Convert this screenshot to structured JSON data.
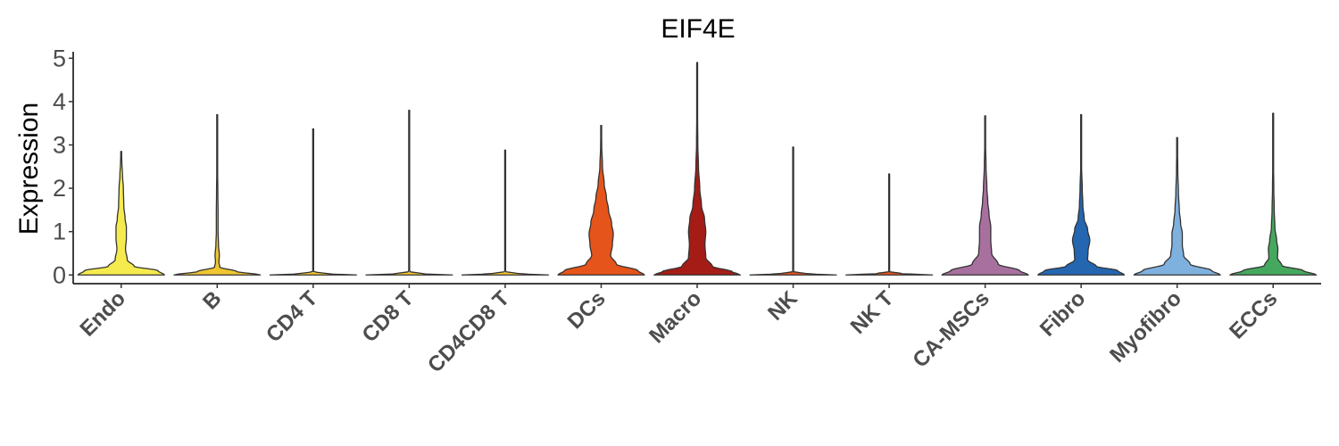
{
  "chart_data": {
    "type": "violin",
    "title": "EIF4E",
    "xlabel": "",
    "ylabel": "Expression",
    "ylim": [
      -0.2,
      5.15
    ],
    "yticks": [
      "0",
      "1",
      "2",
      "3",
      "4",
      "5"
    ],
    "grid": false,
    "legend": "none",
    "categories": [
      "Endo",
      "B",
      "CD4 T",
      "CD8 T",
      "CD4CD8 T",
      "DCs",
      "Macro",
      "NK",
      "NK T",
      "CA-MSCs",
      "Fibro",
      "Myofibro",
      "ECCs"
    ],
    "series": [
      {
        "category": "Endo",
        "color": "#F6EB4E",
        "max": 2.85,
        "profile": [
          [
            0,
            1
          ],
          [
            0.1,
            0.85
          ],
          [
            0.2,
            0.3
          ],
          [
            0.35,
            0.14
          ],
          [
            0.6,
            0.1
          ],
          [
            0.85,
            0.12
          ],
          [
            1.1,
            0.12
          ],
          [
            1.3,
            0.09
          ],
          [
            1.6,
            0.06
          ],
          [
            2.0,
            0.05
          ],
          [
            2.3,
            0.03
          ],
          [
            2.6,
            0.015
          ],
          [
            2.85,
            0.004
          ]
        ]
      },
      {
        "category": "B",
        "color": "#F0C631",
        "max": 3.7,
        "profile": [
          [
            0,
            1
          ],
          [
            0.08,
            0.45
          ],
          [
            0.18,
            0.06
          ],
          [
            0.3,
            0.04
          ],
          [
            0.45,
            0.05
          ],
          [
            0.7,
            0.03
          ],
          [
            1.0,
            0.02
          ],
          [
            1.4,
            0.02
          ],
          [
            1.9,
            0.015
          ],
          [
            2.5,
            0.008
          ],
          [
            3.2,
            0.004
          ],
          [
            3.7,
            0.003
          ]
        ]
      },
      {
        "category": "CD4 T",
        "color": "#F0C631",
        "max": 3.37,
        "profile": [
          [
            0,
            1
          ],
          [
            0.03,
            0.3
          ],
          [
            0.08,
            0.008
          ],
          [
            1.0,
            0.005
          ],
          [
            3.37,
            0.003
          ]
        ]
      },
      {
        "category": "CD8 T",
        "color": "#F0C631",
        "max": 3.8,
        "profile": [
          [
            0,
            1
          ],
          [
            0.03,
            0.3
          ],
          [
            0.08,
            0.008
          ],
          [
            1.0,
            0.005
          ],
          [
            3.8,
            0.003
          ]
        ]
      },
      {
        "category": "CD4CD8 T",
        "color": "#F0C631",
        "max": 2.88,
        "profile": [
          [
            0,
            1
          ],
          [
            0.03,
            0.3
          ],
          [
            0.08,
            0.008
          ],
          [
            1.0,
            0.005
          ],
          [
            2.88,
            0.003
          ]
        ]
      },
      {
        "category": "DCs",
        "color": "#E5541A",
        "max": 3.45,
        "profile": [
          [
            0,
            1
          ],
          [
            0.1,
            0.85
          ],
          [
            0.25,
            0.35
          ],
          [
            0.45,
            0.22
          ],
          [
            0.7,
            0.26
          ],
          [
            0.95,
            0.28
          ],
          [
            1.2,
            0.24
          ],
          [
            1.5,
            0.17
          ],
          [
            1.8,
            0.12
          ],
          [
            2.1,
            0.07
          ],
          [
            2.5,
            0.03
          ],
          [
            3.0,
            0.012
          ],
          [
            3.45,
            0.004
          ]
        ]
      },
      {
        "category": "Macro",
        "color": "#A51C16",
        "max": 4.9,
        "profile": [
          [
            0,
            1
          ],
          [
            0.08,
            0.8
          ],
          [
            0.2,
            0.35
          ],
          [
            0.4,
            0.2
          ],
          [
            0.7,
            0.18
          ],
          [
            1.0,
            0.2
          ],
          [
            1.3,
            0.17
          ],
          [
            1.6,
            0.1
          ],
          [
            2.0,
            0.06
          ],
          [
            2.5,
            0.03
          ],
          [
            3.0,
            0.015
          ],
          [
            4.0,
            0.006
          ],
          [
            4.9,
            0.003
          ]
        ]
      },
      {
        "category": "NK",
        "color": "#E5541A",
        "max": 2.95,
        "profile": [
          [
            0,
            1
          ],
          [
            0.03,
            0.3
          ],
          [
            0.08,
            0.008
          ],
          [
            1.0,
            0.005
          ],
          [
            2.95,
            0.003
          ]
        ]
      },
      {
        "category": "NK T",
        "color": "#E5541A",
        "max": 2.33,
        "profile": [
          [
            0,
            1
          ],
          [
            0.03,
            0.3
          ],
          [
            0.08,
            0.008
          ],
          [
            1.0,
            0.005
          ],
          [
            2.33,
            0.003
          ]
        ]
      },
      {
        "category": "CA-MSCs",
        "color": "#A8709F",
        "max": 3.67,
        "profile": [
          [
            0,
            1
          ],
          [
            0.1,
            0.8
          ],
          [
            0.25,
            0.3
          ],
          [
            0.5,
            0.15
          ],
          [
            0.8,
            0.13
          ],
          [
            1.1,
            0.13
          ],
          [
            1.4,
            0.09
          ],
          [
            1.7,
            0.06
          ],
          [
            2.0,
            0.04
          ],
          [
            2.5,
            0.02
          ],
          [
            3.0,
            0.01
          ],
          [
            3.67,
            0.003
          ]
        ]
      },
      {
        "category": "Fibro",
        "color": "#2466B0",
        "max": 3.7,
        "profile": [
          [
            0,
            1
          ],
          [
            0.1,
            0.85
          ],
          [
            0.2,
            0.35
          ],
          [
            0.35,
            0.15
          ],
          [
            0.55,
            0.16
          ],
          [
            0.8,
            0.2
          ],
          [
            1.05,
            0.15
          ],
          [
            1.3,
            0.07
          ],
          [
            1.6,
            0.04
          ],
          [
            2.0,
            0.025
          ],
          [
            2.5,
            0.01
          ],
          [
            3.0,
            0.006
          ],
          [
            3.7,
            0.003
          ]
        ]
      },
      {
        "category": "Myofibro",
        "color": "#7FB1DE",
        "max": 3.17,
        "profile": [
          [
            0,
            1
          ],
          [
            0.1,
            0.8
          ],
          [
            0.25,
            0.3
          ],
          [
            0.45,
            0.15
          ],
          [
            0.7,
            0.12
          ],
          [
            0.95,
            0.12
          ],
          [
            1.2,
            0.08
          ],
          [
            1.5,
            0.05
          ],
          [
            1.9,
            0.03
          ],
          [
            2.4,
            0.015
          ],
          [
            3.17,
            0.004
          ]
        ]
      },
      {
        "category": "ECCs",
        "color": "#46A85E",
        "max": 3.73,
        "profile": [
          [
            0,
            1
          ],
          [
            0.1,
            0.7
          ],
          [
            0.22,
            0.2
          ],
          [
            0.4,
            0.1
          ],
          [
            0.6,
            0.11
          ],
          [
            0.8,
            0.08
          ],
          [
            1.1,
            0.04
          ],
          [
            1.5,
            0.025
          ],
          [
            2.0,
            0.015
          ],
          [
            2.6,
            0.008
          ],
          [
            3.2,
            0.005
          ],
          [
            3.73,
            0.003
          ]
        ]
      }
    ]
  }
}
